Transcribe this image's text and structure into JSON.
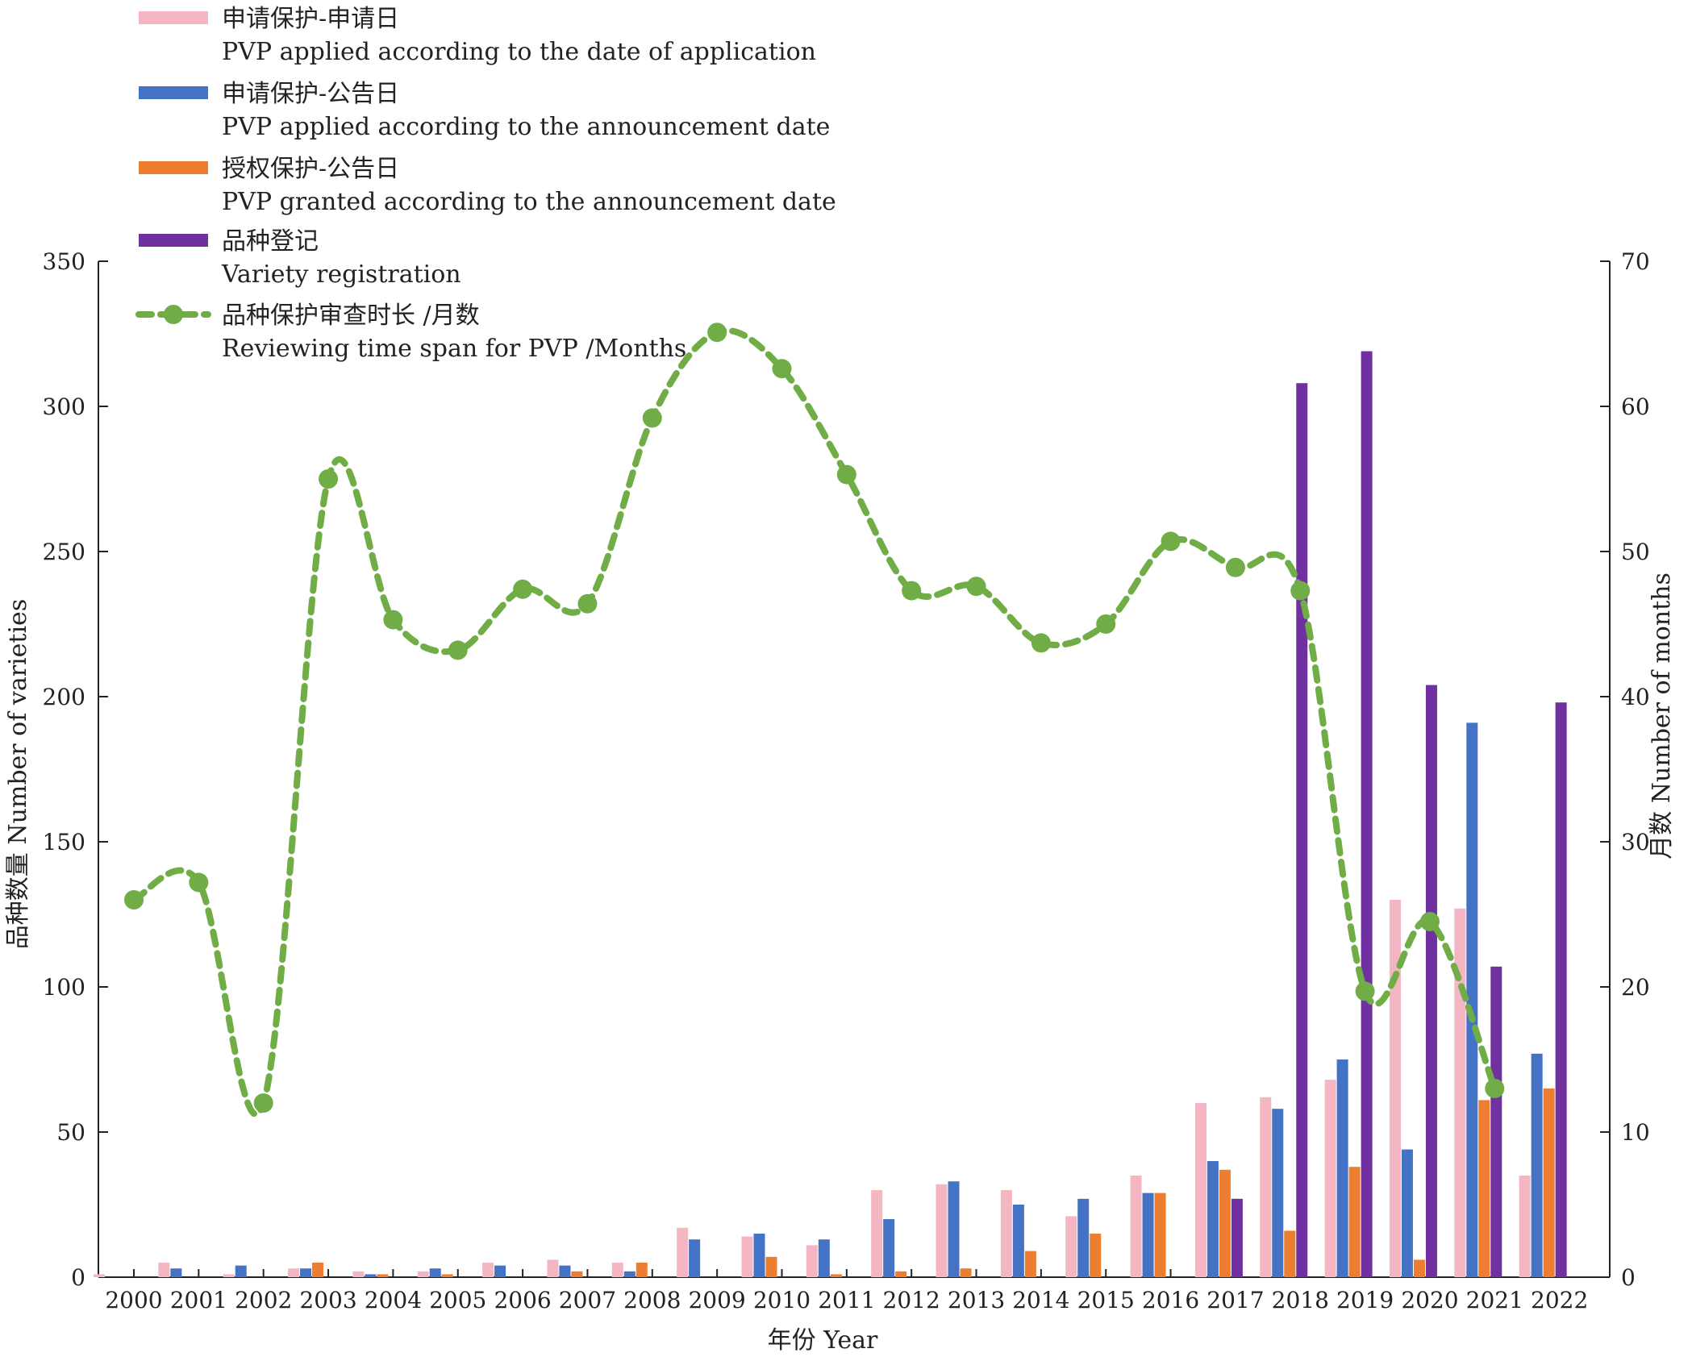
{
  "chart_data": {
    "type": "bar",
    "categories": [
      "2000",
      "2001",
      "2002",
      "2003",
      "2004",
      "2005",
      "2006",
      "2007",
      "2008",
      "2009",
      "2010",
      "2011",
      "2012",
      "2013",
      "2014",
      "2015",
      "2016",
      "2017",
      "2018",
      "2019",
      "2020",
      "2021",
      "2022"
    ],
    "series": [
      {
        "name": "申请保护-申请日",
        "name_en": "PVP applied according to the date of application",
        "color": "#f4b6c2",
        "type": "bar",
        "axis": "left",
        "values": [
          1,
          5,
          1,
          3,
          2,
          2,
          5,
          6,
          5,
          17,
          14,
          11,
          30,
          32,
          30,
          21,
          35,
          60,
          62,
          68,
          130,
          127,
          35
        ]
      },
      {
        "name": "申请保护-公告日",
        "name_en": "PVP applied  according to the announcement date",
        "color": "#4472c4",
        "type": "bar",
        "axis": "left",
        "values": [
          0,
          3,
          4,
          3,
          1,
          3,
          4,
          4,
          2,
          13,
          15,
          13,
          20,
          33,
          25,
          27,
          29,
          40,
          58,
          75,
          44,
          191,
          77
        ]
      },
      {
        "name": "授权保护-公告日",
        "name_en": "PVP granted according to the announcement date",
        "color": "#ed7d31",
        "type": "bar",
        "axis": "left",
        "values": [
          0,
          0,
          0,
          5,
          1,
          1,
          0,
          2,
          5,
          0,
          7,
          1,
          2,
          3,
          9,
          15,
          29,
          37,
          16,
          38,
          6,
          61,
          65
        ]
      },
      {
        "name": "品种登记",
        "name_en": "Variety registration",
        "color": "#7030a0",
        "type": "bar",
        "axis": "left",
        "values": [
          0,
          0,
          0,
          0,
          0,
          0,
          0,
          0,
          0,
          0,
          0,
          0,
          0,
          0,
          0,
          0,
          0,
          27,
          308,
          319,
          204,
          107,
          198
        ]
      },
      {
        "name": "品种保护审查时长 /月数",
        "name_en": "Reviewing time span for PVP /Months",
        "color": "#70ad47",
        "type": "line",
        "axis": "right",
        "values": [
          26,
          27.2,
          12,
          55,
          45.3,
          43.2,
          47.4,
          46.4,
          59.2,
          65.1,
          62.6,
          55.3,
          47.3,
          47.6,
          43.7,
          45,
          50.7,
          48.9,
          47.3,
          19.7,
          24.5,
          13,
          null
        ]
      }
    ],
    "xlabel": "年份 Year",
    "ylabel": "品种数量  Number of varieties",
    "y2label": "月数 Number of months",
    "ylim": [
      0,
      350
    ],
    "y2lim": [
      0,
      70
    ],
    "yticks": [
      "0",
      "50",
      "100",
      "150",
      "200",
      "250",
      "300",
      "350"
    ],
    "y2ticks": [
      "0",
      "10",
      "20",
      "30",
      "40",
      "50",
      "60",
      "70"
    ],
    "legend_position": "top-left",
    "grid": false
  }
}
